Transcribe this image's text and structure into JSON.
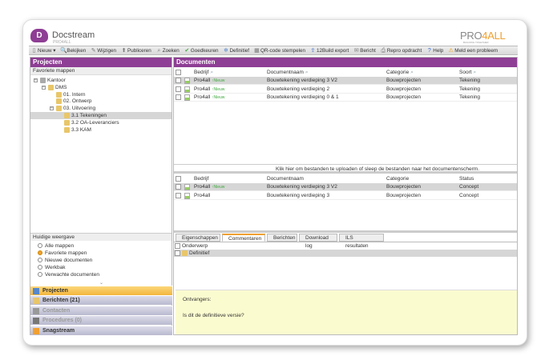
{
  "app": {
    "title": "Docstream",
    "subtitle": "PRO4ALL",
    "brand": "PRO4ALL",
    "brand_tagline": "BUILDING TOGETHER",
    "logo_letter": "D",
    "accent": "#8e3e94",
    "highlight": "#f5b942"
  },
  "toolbar": [
    {
      "label": "Nieuw ▾",
      "icon": "new-document-icon"
    },
    {
      "label": "Bekijken",
      "icon": "view-icon"
    },
    {
      "label": "Wijzigen",
      "icon": "edit-icon"
    },
    {
      "label": "Publiceren",
      "icon": "publish-icon"
    },
    {
      "label": "Zoeken",
      "icon": "search-icon"
    },
    {
      "label": "Goedkeuren",
      "icon": "check-icon"
    },
    {
      "label": "Definitief",
      "icon": "snowflake-icon"
    },
    {
      "label": "QR-code stempelen",
      "icon": "qr-icon"
    },
    {
      "label": "12Build export",
      "icon": "export-icon"
    },
    {
      "label": "Bericht",
      "icon": "message-icon"
    },
    {
      "label": "Repro opdracht",
      "icon": "print-icon"
    },
    {
      "label": "Help",
      "icon": "help-icon"
    },
    {
      "label": "Meld een probleem",
      "icon": "warning-icon"
    }
  ],
  "left": {
    "header": "Projecten",
    "favorites_label": "Favoriete mappen",
    "tree": [
      {
        "label": "Kantoor",
        "level": 0
      },
      {
        "label": "DMS",
        "level": 1
      },
      {
        "label": "01. Intern",
        "level": 2
      },
      {
        "label": "02. Ontwerp",
        "level": 2
      },
      {
        "label": "03. Uitvoering",
        "level": 2
      },
      {
        "label": "3.1 Tekeningen",
        "level": 3,
        "selected": true
      },
      {
        "label": "3.2 OA-Leveranciers",
        "level": 3
      },
      {
        "label": "3.3 KAM",
        "level": 3
      }
    ],
    "view_label": "Huidige weergave",
    "view_options": [
      {
        "label": "Alle mappen",
        "checked": false
      },
      {
        "label": "Favoriete mappen",
        "checked": true
      },
      {
        "label": "Nieuwe documenten",
        "checked": false
      },
      {
        "label": "Werkbak",
        "checked": false
      },
      {
        "label": "Verwachte documenten",
        "checked": false
      }
    ],
    "nav": [
      {
        "label": "Projecten",
        "active": true
      },
      {
        "label": "Berichten (21)"
      },
      {
        "label": "Contacten",
        "disabled": true
      },
      {
        "label": "Procedures (0)",
        "disabled": true
      },
      {
        "label": "Snagstream"
      }
    ]
  },
  "documents": {
    "header": "Documenten",
    "columns": [
      "Bedrijf",
      "Documentnaam",
      "Categorie",
      "Soort"
    ],
    "rows": [
      {
        "company": "Pro4all",
        "badge": "Nieuw",
        "name": "Bouwtekening verdieping 3 V2",
        "category": "Bouwprojecten",
        "type": "Tekening"
      },
      {
        "company": "Pro4all",
        "badge": "Nieuw",
        "name": "Bouwtekening verdieping 2",
        "category": "Bouwprojecten",
        "type": "Tekening"
      },
      {
        "company": "Pro4all",
        "badge": "Nieuw",
        "name": "Bouwtekening verdieping 0 & 1",
        "category": "Bouwprojecten",
        "type": "Tekening"
      }
    ],
    "upload_hint": "Klik hier om bestanden te uploaden of sleep de bestanden naar het documentenscherm."
  },
  "versions": {
    "columns": [
      "Bedrijf",
      "Documentnaam",
      "Categorie",
      "Status"
    ],
    "rows": [
      {
        "company": "Pro4all",
        "badge": "Nieuw",
        "name": "Bouwtekening verdieping 3 V2",
        "category": "Bouwprojecten",
        "status": "Concept"
      },
      {
        "company": "Pro4all",
        "badge": "",
        "name": "Bouwtekening verdieping 3",
        "category": "Bouwprojecten",
        "status": "Concept"
      }
    ]
  },
  "tabs": [
    {
      "label": "Eigenschappen"
    },
    {
      "label": "Commentaren",
      "active": true
    },
    {
      "label": "Berichten"
    },
    {
      "label": "Download log"
    },
    {
      "label": "ILS resultaten"
    }
  ],
  "comments": {
    "column": "Onderwerp",
    "rows": [
      "Definitief"
    ]
  },
  "message": {
    "recipients_label": "Ontvangers:",
    "body": "Is dit de definitieve versie?"
  }
}
